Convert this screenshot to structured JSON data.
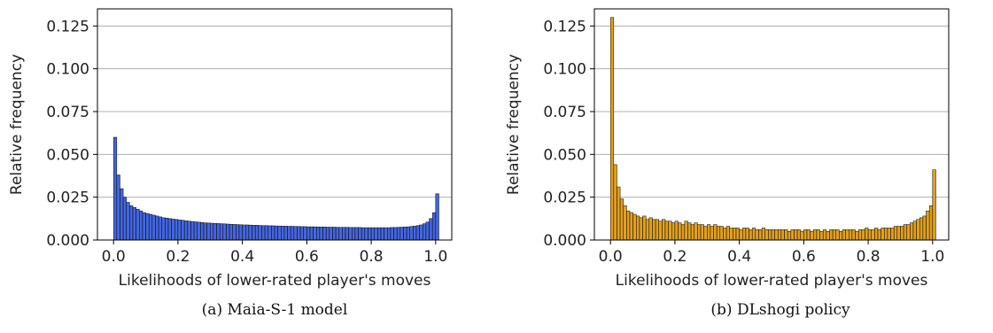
{
  "chart_data": [
    {
      "type": "bar",
      "subplot_caption": "(a) Maia-S-1 model",
      "xlabel": "Likelihoods of lower-rated player's moves",
      "ylabel": "Relative frequency",
      "xlim": [
        -0.05,
        1.05
      ],
      "ylim": [
        0,
        0.135
      ],
      "xticks": [
        "0.0",
        "0.2",
        "0.4",
        "0.6",
        "0.8",
        "1.0"
      ],
      "yticks": [
        "0.000",
        "0.025",
        "0.050",
        "0.075",
        "0.100",
        "0.125"
      ],
      "grid": "horizontal",
      "bar_color": "#4466dd",
      "bin_width": 0.01,
      "bin_start": 0.0,
      "values": [
        0.06,
        0.038,
        0.03,
        0.025,
        0.022,
        0.02,
        0.019,
        0.018,
        0.017,
        0.016,
        0.0155,
        0.015,
        0.0145,
        0.014,
        0.0135,
        0.013,
        0.0128,
        0.0125,
        0.0122,
        0.012,
        0.0117,
        0.0115,
        0.0112,
        0.011,
        0.0108,
        0.0106,
        0.0104,
        0.0102,
        0.01,
        0.0099,
        0.0098,
        0.0097,
        0.0096,
        0.0095,
        0.0094,
        0.0093,
        0.0092,
        0.0091,
        0.009,
        0.0089,
        0.0088,
        0.0088,
        0.0087,
        0.0086,
        0.0086,
        0.0085,
        0.0084,
        0.0084,
        0.0083,
        0.0083,
        0.0082,
        0.0082,
        0.0081,
        0.0081,
        0.008,
        0.008,
        0.0079,
        0.0079,
        0.0078,
        0.0078,
        0.0077,
        0.0077,
        0.0077,
        0.0076,
        0.0076,
        0.0076,
        0.0075,
        0.0075,
        0.0075,
        0.0074,
        0.0074,
        0.0074,
        0.0074,
        0.0073,
        0.0073,
        0.0073,
        0.0073,
        0.0072,
        0.0072,
        0.0072,
        0.0072,
        0.0072,
        0.0072,
        0.0072,
        0.0072,
        0.0072,
        0.0073,
        0.0073,
        0.0074,
        0.0075,
        0.0076,
        0.0077,
        0.0079,
        0.0081,
        0.0084,
        0.0088,
        0.0095,
        0.0105,
        0.0125,
        0.016,
        0.027
      ]
    },
    {
      "type": "bar",
      "subplot_caption": "(b) DLshogi policy",
      "xlabel": "Likelihoods of lower-rated player's moves",
      "ylabel": "Relative frequency",
      "xlim": [
        -0.05,
        1.05
      ],
      "ylim": [
        0,
        0.135
      ],
      "xticks": [
        "0.0",
        "0.2",
        "0.4",
        "0.6",
        "0.8",
        "1.0"
      ],
      "yticks": [
        "0.000",
        "0.025",
        "0.050",
        "0.075",
        "0.100",
        "0.125"
      ],
      "grid": "horizontal",
      "bar_color": "#e0a020",
      "bin_width": 0.01,
      "bin_start": 0.0,
      "values": [
        0.13,
        0.044,
        0.031,
        0.024,
        0.02,
        0.017,
        0.016,
        0.015,
        0.014,
        0.013,
        0.014,
        0.012,
        0.013,
        0.012,
        0.012,
        0.011,
        0.012,
        0.011,
        0.011,
        0.01,
        0.011,
        0.01,
        0.009,
        0.011,
        0.01,
        0.009,
        0.01,
        0.009,
        0.009,
        0.008,
        0.009,
        0.008,
        0.009,
        0.008,
        0.008,
        0.007,
        0.008,
        0.007,
        0.007,
        0.007,
        0.006,
        0.007,
        0.007,
        0.006,
        0.007,
        0.006,
        0.006,
        0.007,
        0.006,
        0.006,
        0.006,
        0.006,
        0.006,
        0.006,
        0.006,
        0.005,
        0.006,
        0.006,
        0.006,
        0.005,
        0.006,
        0.006,
        0.005,
        0.006,
        0.006,
        0.005,
        0.006,
        0.005,
        0.006,
        0.006,
        0.006,
        0.005,
        0.006,
        0.006,
        0.006,
        0.006,
        0.005,
        0.006,
        0.006,
        0.007,
        0.006,
        0.006,
        0.007,
        0.006,
        0.007,
        0.007,
        0.007,
        0.007,
        0.008,
        0.008,
        0.008,
        0.009,
        0.009,
        0.01,
        0.011,
        0.012,
        0.013,
        0.014,
        0.017,
        0.02,
        0.041
      ]
    }
  ]
}
